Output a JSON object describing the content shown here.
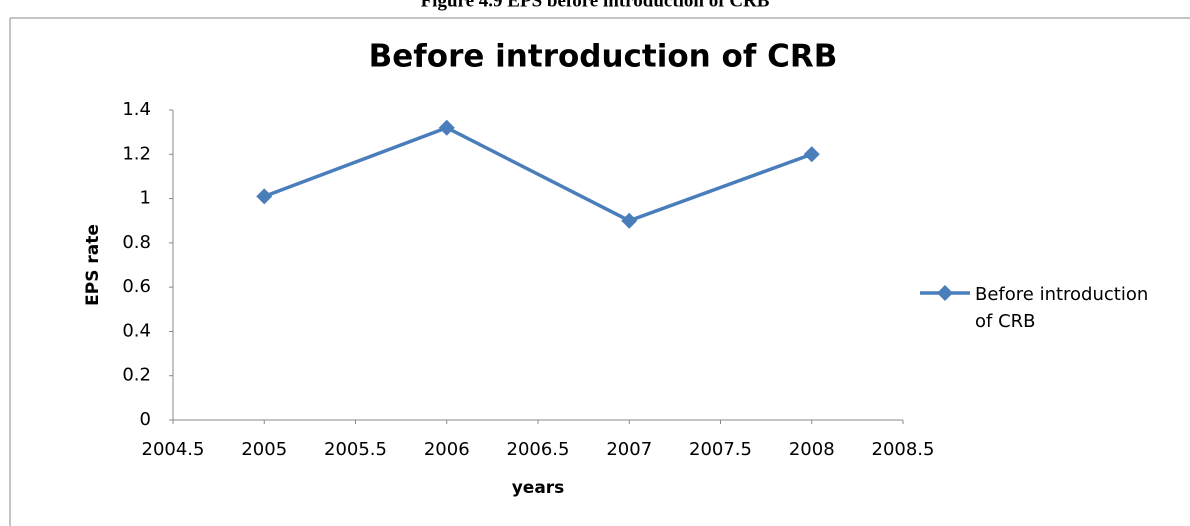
{
  "caption": "Figure 4.9 EPS before introduction of CRB",
  "chart_data": {
    "type": "line",
    "title": "Before  introduction of CRB",
    "x_label": "years",
    "y_label": "EPS rate",
    "x": [
      2005,
      2006,
      2007,
      2008
    ],
    "series": [
      {
        "name": "Before introduction of CRB",
        "color": "#4a7ebb",
        "values": [
          1.01,
          1.32,
          0.9,
          1.2
        ]
      }
    ],
    "xlim": [
      2004.5,
      2008.5
    ],
    "xticks": [
      2004.5,
      2005,
      2005.5,
      2006,
      2006.5,
      2007,
      2007.5,
      2008,
      2008.5
    ],
    "ylim": [
      0,
      1.4
    ],
    "yticks": [
      0,
      0.2,
      0.4,
      0.6,
      0.8,
      1,
      1.2,
      1.4
    ],
    "grid": false,
    "legend": "right"
  }
}
